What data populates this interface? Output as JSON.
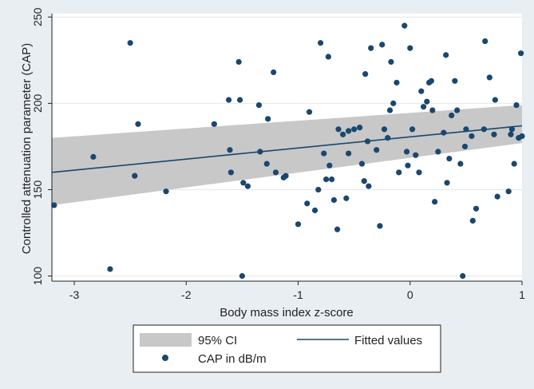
{
  "chart_data": {
    "type": "scatter",
    "xlabel": "Body mass index z-score",
    "ylabel": "Controlled attenuation parameter (CAP)",
    "xlim": [
      -3.2,
      1.0
    ],
    "ylim": [
      97,
      252
    ],
    "xticks": [
      -3,
      -2,
      -1,
      0,
      1
    ],
    "yticks": [
      100,
      150,
      200,
      250
    ],
    "grid": "horizontal",
    "colors": {
      "background": "#e9eef3",
      "plot_bg": "#ffffff",
      "ci_band": "#c8c8c8",
      "line": "#1a476f",
      "marker": "#1a476f",
      "grid": "#e3e8ec"
    },
    "ci_band": {
      "name": "95% CI",
      "x": [
        -3.2,
        1.0
      ],
      "lower": [
        141,
        177
      ],
      "upper": [
        180,
        199
      ]
    },
    "fitted": {
      "name": "Fitted values",
      "x": [
        -3.2,
        1.0
      ],
      "y": [
        160,
        187
      ]
    },
    "scatter_name": "CAP in dB/m",
    "points": [
      [
        -3.18,
        141
      ],
      [
        -2.83,
        169
      ],
      [
        -2.68,
        104
      ],
      [
        -2.5,
        235
      ],
      [
        -2.46,
        158
      ],
      [
        -2.43,
        188
      ],
      [
        -2.18,
        149
      ],
      [
        -1.75,
        188
      ],
      [
        -1.62,
        202
      ],
      [
        -1.61,
        173
      ],
      [
        -1.6,
        160
      ],
      [
        -1.53,
        224
      ],
      [
        -1.52,
        202
      ],
      [
        -1.5,
        100
      ],
      [
        -1.49,
        154
      ],
      [
        -1.45,
        152
      ],
      [
        -1.35,
        199
      ],
      [
        -1.34,
        172
      ],
      [
        -1.28,
        165
      ],
      [
        -1.27,
        191
      ],
      [
        -1.22,
        218
      ],
      [
        -1.2,
        160
      ],
      [
        -1.13,
        157
      ],
      [
        -1.11,
        158
      ],
      [
        -1.0,
        130
      ],
      [
        -0.92,
        142
      ],
      [
        -0.9,
        195
      ],
      [
        -0.85,
        138
      ],
      [
        -0.82,
        150
      ],
      [
        -0.8,
        235
      ],
      [
        -0.77,
        171
      ],
      [
        -0.75,
        156
      ],
      [
        -0.73,
        227
      ],
      [
        -0.72,
        164
      ],
      [
        -0.7,
        156
      ],
      [
        -0.68,
        144
      ],
      [
        -0.65,
        127
      ],
      [
        -0.64,
        185
      ],
      [
        -0.6,
        182
      ],
      [
        -0.57,
        145
      ],
      [
        -0.55,
        171
      ],
      [
        -0.55,
        184
      ],
      [
        -0.5,
        185
      ],
      [
        -0.45,
        186
      ],
      [
        -0.43,
        165
      ],
      [
        -0.41,
        155
      ],
      [
        -0.4,
        217
      ],
      [
        -0.38,
        178
      ],
      [
        -0.37,
        152
      ],
      [
        -0.35,
        232
      ],
      [
        -0.3,
        173
      ],
      [
        -0.27,
        129
      ],
      [
        -0.25,
        234
      ],
      [
        -0.23,
        185
      ],
      [
        -0.2,
        180
      ],
      [
        -0.18,
        196
      ],
      [
        -0.17,
        224
      ],
      [
        -0.15,
        200
      ],
      [
        -0.12,
        212
      ],
      [
        -0.1,
        160
      ],
      [
        -0.05,
        245
      ],
      [
        -0.03,
        172
      ],
      [
        -0.02,
        164
      ],
      [
        0,
        232
      ],
      [
        0.02,
        185
      ],
      [
        0.05,
        170
      ],
      [
        0.08,
        160
      ],
      [
        0.1,
        207
      ],
      [
        0.12,
        198
      ],
      [
        0.15,
        201
      ],
      [
        0.17,
        212
      ],
      [
        0.19,
        213
      ],
      [
        0.2,
        196
      ],
      [
        0.22,
        143
      ],
      [
        0.25,
        172
      ],
      [
        0.3,
        183
      ],
      [
        0.32,
        228
      ],
      [
        0.33,
        154
      ],
      [
        0.35,
        168
      ],
      [
        0.37,
        193
      ],
      [
        0.4,
        213
      ],
      [
        0.42,
        196
      ],
      [
        0.45,
        165
      ],
      [
        0.47,
        100
      ],
      [
        0.49,
        175
      ],
      [
        0.5,
        185
      ],
      [
        0.55,
        181
      ],
      [
        0.56,
        132
      ],
      [
        0.59,
        139
      ],
      [
        0.66,
        185
      ],
      [
        0.67,
        236
      ],
      [
        0.71,
        215
      ],
      [
        0.75,
        182
      ],
      [
        0.76,
        202
      ],
      [
        0.78,
        146
      ],
      [
        0.88,
        149
      ],
      [
        0.9,
        182
      ],
      [
        0.91,
        185
      ],
      [
        0.93,
        165
      ],
      [
        0.95,
        199
      ],
      [
        0.97,
        180
      ],
      [
        0.99,
        229
      ],
      [
        1.0,
        181
      ]
    ]
  }
}
